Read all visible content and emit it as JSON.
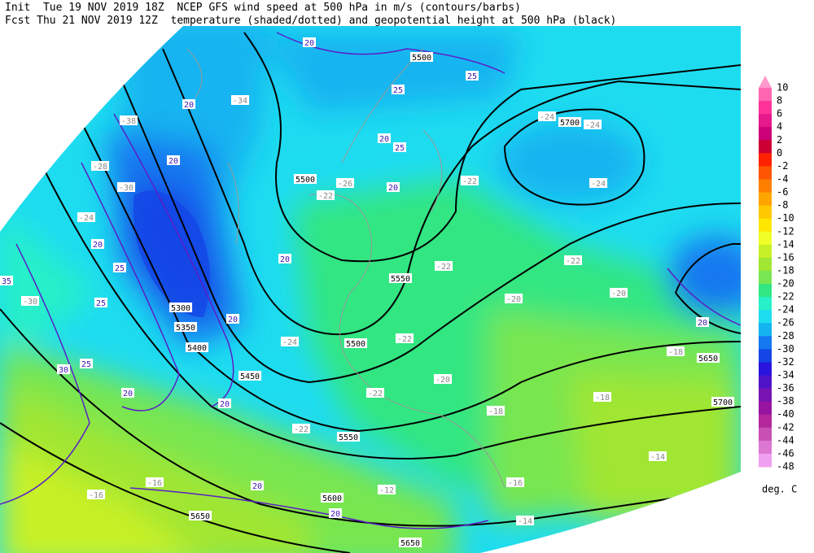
{
  "header": {
    "line1": "Init  Tue 19 NOV 2019 18Z  NCEP GFS wind speed at 500 hPa in m/s (contours/barbs)",
    "line2": "Fcst Thu 21 NOV 2019 12Z  temperature (shaded/dotted) and geopotential height at 500 hPa (black)"
  },
  "colorbar": {
    "levels": [
      10,
      8,
      6,
      4,
      2,
      0,
      -2,
      -4,
      -6,
      -8,
      -10,
      -12,
      -14,
      -16,
      -18,
      -20,
      -22,
      -24,
      -26,
      -28,
      -30,
      -32,
      -34,
      -36,
      -38,
      -40,
      -42,
      -44,
      -46,
      -48
    ],
    "top_color": "#ff99cc",
    "colors": [
      "#ff66b2",
      "#ff3399",
      "#e6198c",
      "#cc0077",
      "#cc0033",
      "#ff2200",
      "#ff5500",
      "#ff7f00",
      "#ffa500",
      "#ffc800",
      "#ffe600",
      "#f0ff28",
      "#c8f028",
      "#a0e632",
      "#78e650",
      "#32e682",
      "#28f0c8",
      "#1edcf0",
      "#14b4f0",
      "#1478f0",
      "#1446e6",
      "#2814dc",
      "#5014c8",
      "#7814b4",
      "#9614a0",
      "#b4289c",
      "#c850b4",
      "#dc78d2",
      "#f0a0f0"
    ],
    "unit": "deg. C"
  },
  "height_labels": [
    "5700",
    "5500",
    "5500",
    "5550",
    "5500",
    "5300",
    "5350",
    "5400",
    "5450",
    "5550",
    "5600",
    "5650",
    "5650",
    "5650",
    "5700"
  ],
  "temperature_labels": [
    "-24",
    "-24",
    "-24",
    "-26",
    "-22",
    "-22",
    "-22",
    "-20",
    "-20",
    "-24",
    "-22",
    "-20",
    "-22",
    "-22",
    "-18",
    "-16",
    "-12",
    "-18",
    "-18",
    "-24",
    "-30",
    "-38",
    "-28",
    "-34",
    "-14",
    "-14",
    "-16",
    "-30",
    "-16",
    "-22"
  ],
  "wind_labels": [
    "20",
    "20",
    "20",
    "20",
    "25",
    "25",
    "20",
    "20",
    "20",
    "25",
    "25",
    "20",
    "20",
    "20",
    "25",
    "30",
    "35",
    "20",
    "20",
    "20",
    "25"
  ]
}
